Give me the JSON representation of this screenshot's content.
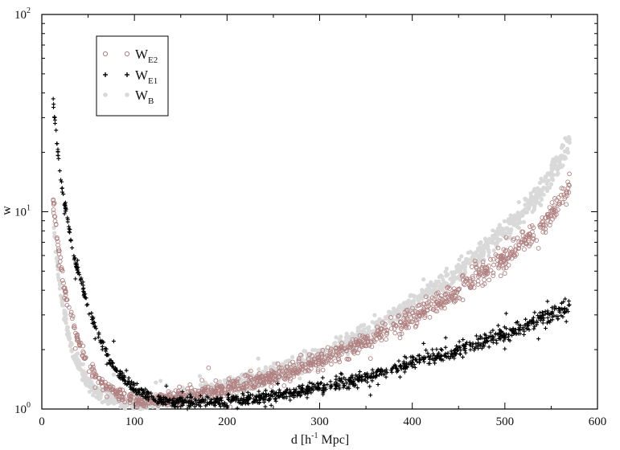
{
  "chart_data": {
    "type": "scatter",
    "title": "",
    "xlabel": "d [h",
    "xlabel_sup": "-1",
    "xlabel_tail": " Mpc]",
    "ylabel": "w",
    "xlim": [
      0,
      600
    ],
    "ylim": [
      1,
      100
    ],
    "yscale": "log",
    "grid": false,
    "legend_position": "top-left",
    "x_ticks": [
      0,
      100,
      200,
      300,
      400,
      500,
      600
    ],
    "x_tick_labels": [
      "0",
      "100",
      "200",
      "300",
      "400",
      "500",
      "600"
    ],
    "y_ticks": [
      1,
      10,
      100
    ],
    "y_tick_labels": [
      {
        "base": "10",
        "exp": "0"
      },
      {
        "base": "10",
        "exp": "1"
      },
      {
        "base": "10",
        "exp": "2"
      }
    ],
    "series": [
      {
        "name": "W",
        "sub": "E2",
        "marker": "circle",
        "color": "#b08080",
        "x": [
          12,
          15,
          18,
          22,
          27,
          33,
          40,
          50,
          60,
          75,
          90,
          110,
          130,
          160,
          200,
          250,
          300,
          350,
          400,
          450,
          500,
          540,
          570
        ],
        "y": [
          11.5,
          8.5,
          6.5,
          4.8,
          3.6,
          2.8,
          2.2,
          1.7,
          1.4,
          1.25,
          1.15,
          1.1,
          1.12,
          1.17,
          1.28,
          1.45,
          1.75,
          2.2,
          2.9,
          4.0,
          5.8,
          8.5,
          13.5
        ]
      },
      {
        "name": "W",
        "sub": "E1",
        "marker": "plus",
        "color": "#000000",
        "x": [
          12,
          15,
          18,
          22,
          27,
          33,
          40,
          50,
          60,
          75,
          90,
          110,
          130,
          160,
          200,
          250,
          300,
          350,
          400,
          450,
          500,
          540,
          570
        ],
        "y": [
          38,
          26,
          19,
          13,
          9.5,
          6.5,
          4.8,
          3.3,
          2.4,
          1.7,
          1.4,
          1.2,
          1.1,
          1.08,
          1.1,
          1.16,
          1.28,
          1.45,
          1.7,
          2.0,
          2.4,
          2.9,
          3.3
        ]
      },
      {
        "name": "W",
        "sub": "B",
        "marker": "dot",
        "color": "#d9d9d9",
        "x": [
          12,
          15,
          18,
          22,
          27,
          33,
          40,
          50,
          60,
          75,
          90,
          110,
          130,
          160,
          200,
          250,
          300,
          350,
          400,
          450,
          500,
          540,
          570
        ],
        "y": [
          9.5,
          6.5,
          4.8,
          3.5,
          2.6,
          2.0,
          1.65,
          1.35,
          1.2,
          1.12,
          1.08,
          1.07,
          1.1,
          1.16,
          1.3,
          1.5,
          1.85,
          2.4,
          3.4,
          5.0,
          8.0,
          13.0,
          22.0
        ]
      }
    ]
  }
}
